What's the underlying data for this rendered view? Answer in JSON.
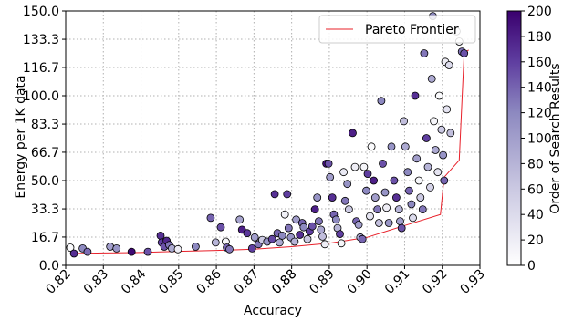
{
  "chart_data": {
    "type": "scatter",
    "xlabel": "Accuracy",
    "ylabel": "Energy per 1K data",
    "xlim": [
      0.82,
      0.93
    ],
    "ylim": [
      0,
      150
    ],
    "x_ticks": [
      "0.82",
      "0.83",
      "0.84",
      "0.85",
      "0.86",
      "0.87",
      "0.88",
      "0.89",
      "0.90",
      "0.91",
      "0.92",
      "0.93"
    ],
    "extra_x_tick": "0.88",
    "y_ticks": [
      "0.0",
      "16.7",
      "33.3",
      "50.0",
      "66.7",
      "83.3",
      "100.0",
      "116.7",
      "133.3",
      "150.0"
    ],
    "grid": true,
    "legend": {
      "position": "top-right",
      "entries": [
        "Pareto Frontier"
      ]
    },
    "colorbar": {
      "label": "Order of Search Results",
      "range": [
        0,
        200
      ],
      "ticks": [
        "0",
        "20",
        "40",
        "60",
        "80",
        "100",
        "120",
        "140",
        "160",
        "180",
        "200"
      ],
      "color_low": "#ffffff",
      "color_high": "#3a006e"
    },
    "colors": {
      "frontier": "#e8202a",
      "marker_edge": "#000000"
    },
    "frontier": {
      "name": "Pareto Frontier",
      "points": [
        [
          0.8215,
          7.0
        ],
        [
          0.83,
          7.3
        ],
        [
          0.84,
          7.6
        ],
        [
          0.85,
          8.3
        ],
        [
          0.86,
          8.8
        ],
        [
          0.87,
          9.5
        ],
        [
          0.88,
          11.0
        ],
        [
          0.89,
          13.0
        ],
        [
          0.9,
          16.5
        ],
        [
          0.91,
          23.5
        ],
        [
          0.9195,
          30.0
        ],
        [
          0.9205,
          52.0
        ],
        [
          0.9245,
          62.0
        ],
        [
          0.9258,
          125.0
        ],
        [
          0.927,
          127.0
        ]
      ]
    },
    "points": [
      {
        "x": 0.8212,
        "y": 10.5,
        "c": 5
      },
      {
        "x": 0.8222,
        "y": 7.0,
        "c": 170
      },
      {
        "x": 0.8245,
        "y": 10.0,
        "c": 120
      },
      {
        "x": 0.8258,
        "y": 8.0,
        "c": 135
      },
      {
        "x": 0.8318,
        "y": 11.0,
        "c": 100
      },
      {
        "x": 0.8335,
        "y": 10.0,
        "c": 110
      },
      {
        "x": 0.8375,
        "y": 8.0,
        "c": 195
      },
      {
        "x": 0.8418,
        "y": 8.0,
        "c": 150
      },
      {
        "x": 0.8452,
        "y": 17.5,
        "c": 170
      },
      {
        "x": 0.8455,
        "y": 13.5,
        "c": 160
      },
      {
        "x": 0.8462,
        "y": 11.0,
        "c": 150
      },
      {
        "x": 0.8468,
        "y": 14.5,
        "c": 175
      },
      {
        "x": 0.8475,
        "y": 12.0,
        "c": 130
      },
      {
        "x": 0.8482,
        "y": 10.0,
        "c": 90
      },
      {
        "x": 0.8498,
        "y": 9.5,
        "c": 20
      },
      {
        "x": 0.8545,
        "y": 11.0,
        "c": 120
      },
      {
        "x": 0.8585,
        "y": 28.0,
        "c": 140
      },
      {
        "x": 0.8598,
        "y": 13.5,
        "c": 80
      },
      {
        "x": 0.8612,
        "y": 22.5,
        "c": 150
      },
      {
        "x": 0.8625,
        "y": 14.0,
        "c": 10
      },
      {
        "x": 0.8628,
        "y": 10.5,
        "c": 140
      },
      {
        "x": 0.8635,
        "y": 9.5,
        "c": 130
      },
      {
        "x": 0.8662,
        "y": 27.0,
        "c": 95
      },
      {
        "x": 0.8668,
        "y": 21.0,
        "c": 180
      },
      {
        "x": 0.8682,
        "y": 19.0,
        "c": 165
      },
      {
        "x": 0.8695,
        "y": 10.0,
        "c": 160
      },
      {
        "x": 0.8702,
        "y": 16.5,
        "c": 100
      },
      {
        "x": 0.8712,
        "y": 12.5,
        "c": 130
      },
      {
        "x": 0.8722,
        "y": 15.0,
        "c": 60
      },
      {
        "x": 0.8735,
        "y": 14.0,
        "c": 110
      },
      {
        "x": 0.8748,
        "y": 15.5,
        "c": 155
      },
      {
        "x": 0.8755,
        "y": 42.0,
        "c": 170
      },
      {
        "x": 0.8762,
        "y": 19.0,
        "c": 140
      },
      {
        "x": 0.8768,
        "y": 13.5,
        "c": 90
      },
      {
        "x": 0.8775,
        "y": 17.5,
        "c": 120
      },
      {
        "x": 0.8782,
        "y": 30.0,
        "c": 15
      },
      {
        "x": 0.8788,
        "y": 42.0,
        "c": 160
      },
      {
        "x": 0.8792,
        "y": 22.0,
        "c": 130
      },
      {
        "x": 0.8798,
        "y": 16.5,
        "c": 110
      },
      {
        "x": 0.8808,
        "y": 14.0,
        "c": 80
      },
      {
        "x": 0.8812,
        "y": 27.0,
        "c": 100
      },
      {
        "x": 0.8822,
        "y": 18.0,
        "c": 170
      },
      {
        "x": 0.8828,
        "y": 25.0,
        "c": 140
      },
      {
        "x": 0.8832,
        "y": 22.5,
        "c": 120
      },
      {
        "x": 0.8842,
        "y": 15.5,
        "c": 60
      },
      {
        "x": 0.8848,
        "y": 20.0,
        "c": 160
      },
      {
        "x": 0.8855,
        "y": 23.0,
        "c": 150
      },
      {
        "x": 0.8862,
        "y": 33.0,
        "c": 180
      },
      {
        "x": 0.8868,
        "y": 40.0,
        "c": 110
      },
      {
        "x": 0.8872,
        "y": 26.0,
        "c": 130
      },
      {
        "x": 0.8878,
        "y": 21.0,
        "c": 90
      },
      {
        "x": 0.8882,
        "y": 17.0,
        "c": 70
      },
      {
        "x": 0.8888,
        "y": 12.5,
        "c": 20
      },
      {
        "x": 0.8892,
        "y": 60.0,
        "c": 190
      },
      {
        "x": 0.8898,
        "y": 60.0,
        "c": 150
      },
      {
        "x": 0.8902,
        "y": 52.0,
        "c": 100
      },
      {
        "x": 0.8908,
        "y": 40.0,
        "c": 170
      },
      {
        "x": 0.8912,
        "y": 30.0,
        "c": 140
      },
      {
        "x": 0.8918,
        "y": 27.0,
        "c": 120
      },
      {
        "x": 0.8922,
        "y": 22.0,
        "c": 80
      },
      {
        "x": 0.8928,
        "y": 18.5,
        "c": 160
      },
      {
        "x": 0.8932,
        "y": 13.0,
        "c": 10
      },
      {
        "x": 0.8938,
        "y": 55.0,
        "c": 25
      },
      {
        "x": 0.8942,
        "y": 38.0,
        "c": 130
      },
      {
        "x": 0.8948,
        "y": 48.0,
        "c": 110
      },
      {
        "x": 0.8952,
        "y": 33.0,
        "c": 60
      },
      {
        "x": 0.8962,
        "y": 78.0,
        "c": 180
      },
      {
        "x": 0.8968,
        "y": 58.0,
        "c": 20
      },
      {
        "x": 0.8972,
        "y": 26.0,
        "c": 140
      },
      {
        "x": 0.8978,
        "y": 24.0,
        "c": 100
      },
      {
        "x": 0.8982,
        "y": 16.5,
        "c": 90
      },
      {
        "x": 0.8988,
        "y": 15.5,
        "c": 140
      },
      {
        "x": 0.8992,
        "y": 58.0,
        "c": 10
      },
      {
        "x": 0.8998,
        "y": 44.0,
        "c": 120
      },
      {
        "x": 0.9002,
        "y": 54.0,
        "c": 160
      },
      {
        "x": 0.9008,
        "y": 29.0,
        "c": 30
      },
      {
        "x": 0.9012,
        "y": 70.0,
        "c": 5
      },
      {
        "x": 0.9018,
        "y": 50.0,
        "c": 180
      },
      {
        "x": 0.9022,
        "y": 40.0,
        "c": 100
      },
      {
        "x": 0.9028,
        "y": 33.0,
        "c": 130
      },
      {
        "x": 0.9032,
        "y": 25.0,
        "c": 70
      },
      {
        "x": 0.9038,
        "y": 97.0,
        "c": 120
      },
      {
        "x": 0.9042,
        "y": 60.0,
        "c": 150
      },
      {
        "x": 0.9048,
        "y": 43.0,
        "c": 110
      },
      {
        "x": 0.9052,
        "y": 34.0,
        "c": 20
      },
      {
        "x": 0.9058,
        "y": 25.0,
        "c": 110
      },
      {
        "x": 0.9065,
        "y": 70.0,
        "c": 110
      },
      {
        "x": 0.9072,
        "y": 50.0,
        "c": 150
      },
      {
        "x": 0.9078,
        "y": 40.0,
        "c": 170
      },
      {
        "x": 0.9085,
        "y": 33.0,
        "c": 80
      },
      {
        "x": 0.9088,
        "y": 26.0,
        "c": 100
      },
      {
        "x": 0.9092,
        "y": 22.0,
        "c": 150
      },
      {
        "x": 0.9098,
        "y": 85.0,
        "c": 70
      },
      {
        "x": 0.9102,
        "y": 70.0,
        "c": 90
      },
      {
        "x": 0.9108,
        "y": 55.0,
        "c": 120
      },
      {
        "x": 0.9112,
        "y": 44.0,
        "c": 140
      },
      {
        "x": 0.9118,
        "y": 36.0,
        "c": 120
      },
      {
        "x": 0.9122,
        "y": 28.0,
        "c": 40
      },
      {
        "x": 0.9128,
        "y": 100.0,
        "c": 170
      },
      {
        "x": 0.9132,
        "y": 63.0,
        "c": 100
      },
      {
        "x": 0.9138,
        "y": 50.0,
        "c": 10
      },
      {
        "x": 0.9142,
        "y": 40.0,
        "c": 60
      },
      {
        "x": 0.9148,
        "y": 33.0,
        "c": 130
      },
      {
        "x": 0.9152,
        "y": 125.0,
        "c": 130
      },
      {
        "x": 0.9158,
        "y": 75.0,
        "c": 160
      },
      {
        "x": 0.9162,
        "y": 58.0,
        "c": 80
      },
      {
        "x": 0.9168,
        "y": 46.0,
        "c": 50
      },
      {
        "x": 0.9172,
        "y": 110.0,
        "c": 90
      },
      {
        "x": 0.9175,
        "y": 147.0,
        "c": 120
      },
      {
        "x": 0.9178,
        "y": 85.0,
        "c": 10
      },
      {
        "x": 0.9182,
        "y": 68.0,
        "c": 90
      },
      {
        "x": 0.9188,
        "y": 55.0,
        "c": 30
      },
      {
        "x": 0.9192,
        "y": 100.0,
        "c": 5
      },
      {
        "x": 0.9198,
        "y": 80.0,
        "c": 60
      },
      {
        "x": 0.9202,
        "y": 65.0,
        "c": 110
      },
      {
        "x": 0.9205,
        "y": 50.0,
        "c": 140
      },
      {
        "x": 0.9208,
        "y": 120.0,
        "c": 20
      },
      {
        "x": 0.9212,
        "y": 92.0,
        "c": 30
      },
      {
        "x": 0.9218,
        "y": 118.0,
        "c": 40
      },
      {
        "x": 0.9222,
        "y": 78.0,
        "c": 70
      },
      {
        "x": 0.9238,
        "y": 138.0,
        "c": 10
      },
      {
        "x": 0.9245,
        "y": 132.0,
        "c": 5
      },
      {
        "x": 0.9252,
        "y": 126.0,
        "c": 130
      },
      {
        "x": 0.9258,
        "y": 125.0,
        "c": 150
      }
    ]
  }
}
